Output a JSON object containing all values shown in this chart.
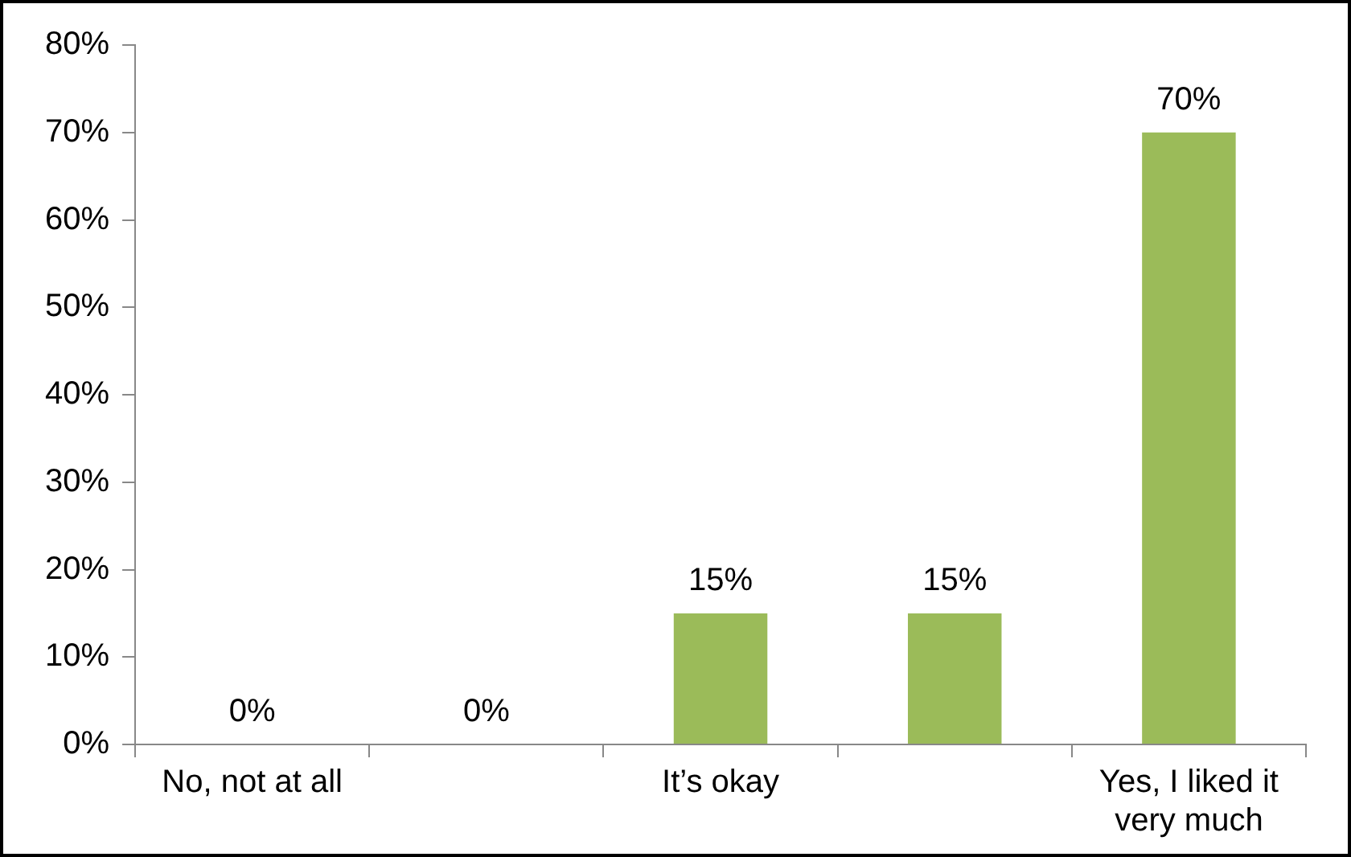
{
  "chart_data": {
    "type": "bar",
    "categories": [
      "No, not at all",
      null,
      "It’s okay",
      null,
      "Yes, I liked it very much"
    ],
    "values": [
      0,
      0,
      15,
      15,
      70
    ],
    "value_labels": [
      "0%",
      "0%",
      "15%",
      "15%",
      "70%"
    ],
    "color": "#9bbb59",
    "ylim": [
      0,
      80
    ],
    "yticks": [
      {
        "value": 0,
        "label": "0%"
      },
      {
        "value": 10,
        "label": "10%"
      },
      {
        "value": 20,
        "label": "20%"
      },
      {
        "value": 30,
        "label": "30%"
      },
      {
        "value": 40,
        "label": "40%"
      },
      {
        "value": 50,
        "label": "50%"
      },
      {
        "value": 60,
        "label": "60%"
      },
      {
        "value": 70,
        "label": "70%"
      },
      {
        "value": 80,
        "label": "80%"
      }
    ],
    "grid": false,
    "legend": false
  }
}
